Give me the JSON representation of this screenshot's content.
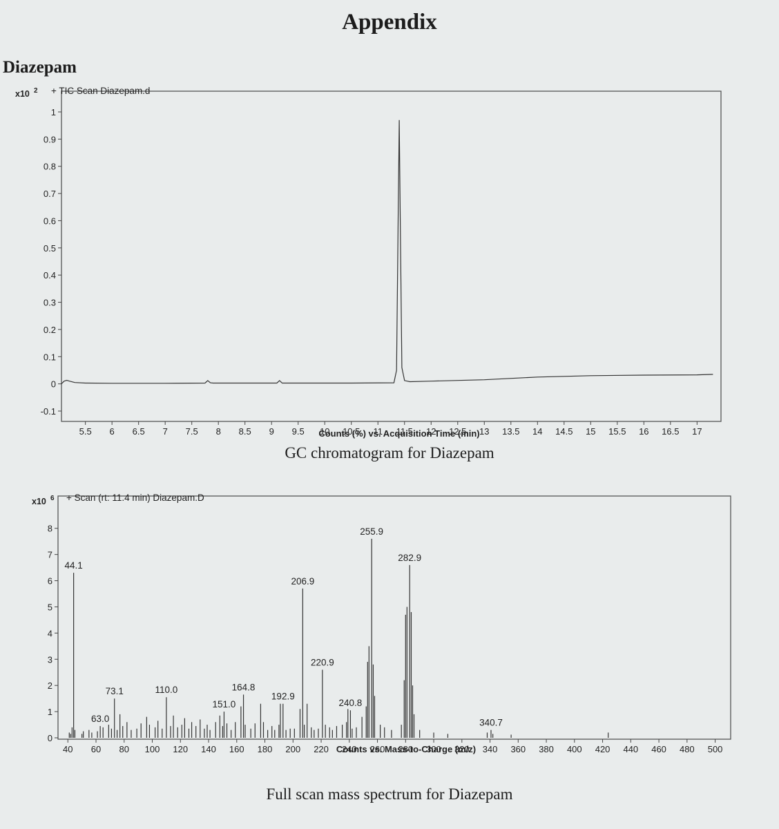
{
  "page": {
    "title": "Appendix",
    "compound": "Diazepam",
    "gc_caption": "GC chromatogram for Diazepam",
    "ms_caption": "Full scan mass spectrum for Diazepam"
  },
  "chart_data": [
    {
      "type": "line",
      "scan_label": "+ TIC Scan Diazepam.d",
      "y_multiplier": "x10",
      "y_exponent": "2",
      "xlabel": "Counts (%) vs. Acquisition Time (min)",
      "xlim": [
        5.05,
        17.45
      ],
      "ylim": [
        -0.1,
        1.0
      ],
      "x_ticks": [
        5.5,
        6,
        6.5,
        7,
        7.5,
        8,
        8.5,
        9,
        9.5,
        10,
        10.5,
        11,
        11.5,
        12,
        12.5,
        13,
        13.5,
        14,
        14.5,
        15,
        15.5,
        16,
        16.5,
        17
      ],
      "x_tick_labels": [
        "5.5",
        "6",
        "6.5",
        "7",
        "7.5",
        "8",
        "8.5",
        "9",
        "9.5",
        "10",
        "10.5",
        "11",
        "11.5",
        "12",
        "12.5",
        "13",
        "13.5",
        "14",
        "14.5",
        "15",
        "15.5",
        "16",
        "16.5",
        "17"
      ],
      "y_ticks": [
        1.0,
        0.9,
        0.8,
        0.7,
        0.6,
        0.5,
        0.4,
        0.3,
        0.2,
        0.1,
        0.0,
        -0.1
      ],
      "y_tick_labels": [
        "1",
        "0.9",
        "0.8",
        "0.7",
        "0.6",
        "0.5",
        "0.4",
        "0.3",
        "0.2",
        "0.1",
        "0",
        "-0.1"
      ],
      "series": [
        {
          "x": [
            5.05,
            5.1,
            5.15,
            5.2,
            5.3,
            5.5,
            6.0,
            7.0,
            7.75,
            7.8,
            7.85,
            7.9,
            8.5,
            9.1,
            9.15,
            9.2,
            9.5,
            10.5,
            11.3,
            11.35,
            11.38,
            11.4,
            11.42,
            11.45,
            11.5,
            11.6,
            12.0,
            13.0,
            14.0,
            15.0,
            16.0,
            17.0,
            17.3
          ],
          "y": [
            0.0,
            0.01,
            0.013,
            0.01,
            0.005,
            0.003,
            0.002,
            0.002,
            0.003,
            0.012,
            0.004,
            0.003,
            0.003,
            0.003,
            0.012,
            0.003,
            0.003,
            0.003,
            0.004,
            0.05,
            0.6,
            0.97,
            0.6,
            0.06,
            0.012,
            0.008,
            0.01,
            0.015,
            0.025,
            0.03,
            0.032,
            0.033,
            0.035
          ]
        }
      ]
    },
    {
      "type": "bar",
      "scan_label": "+ Scan (rt: 11.4 min) Diazepam.D",
      "y_multiplier": "x10",
      "y_exponent": "6",
      "xlabel": "Counts vs. Mass-to-Charge (m/z)",
      "xlim": [
        33,
        511
      ],
      "ylim": [
        0,
        8.6
      ],
      "x_ticks": [
        40,
        60,
        80,
        100,
        120,
        140,
        160,
        180,
        200,
        220,
        240,
        260,
        280,
        300,
        320,
        340,
        360,
        380,
        400,
        420,
        440,
        460,
        480,
        500
      ],
      "x_tick_labels": [
        "40",
        "60",
        "80",
        "100",
        "120",
        "140",
        "160",
        "180",
        "200",
        "220",
        "240",
        "260",
        "280",
        "300",
        "320",
        "340",
        "360",
        "380",
        "400",
        "420",
        "440",
        "460",
        "480",
        "500"
      ],
      "y_ticks": [
        8,
        7,
        6,
        5,
        4,
        3,
        2,
        1,
        0
      ],
      "y_tick_labels": [
        "8",
        "7",
        "6",
        "5",
        "4",
        "3",
        "2",
        "1",
        "0"
      ],
      "peaks": [
        {
          "mz": 44.1,
          "intensity": 6.3,
          "label": "44.1"
        },
        {
          "mz": 63.0,
          "intensity": 0.45,
          "label": "63.0"
        },
        {
          "mz": 73.1,
          "intensity": 1.5,
          "label": "73.1"
        },
        {
          "mz": 110.0,
          "intensity": 1.55,
          "label": "110.0"
        },
        {
          "mz": 151.0,
          "intensity": 1.0,
          "label": "151.0"
        },
        {
          "mz": 164.8,
          "intensity": 1.65,
          "label": "164.8"
        },
        {
          "mz": 192.9,
          "intensity": 1.3,
          "label": "192.9"
        },
        {
          "mz": 206.9,
          "intensity": 5.7,
          "label": "206.9"
        },
        {
          "mz": 220.9,
          "intensity": 2.6,
          "label": "220.9"
        },
        {
          "mz": 240.8,
          "intensity": 1.05,
          "label": "240.8"
        },
        {
          "mz": 255.9,
          "intensity": 7.6,
          "label": "255.9"
        },
        {
          "mz": 282.9,
          "intensity": 6.6,
          "label": "282.9"
        },
        {
          "mz": 340.7,
          "intensity": 0.3,
          "label": "340.7"
        }
      ],
      "minor_peaks": {
        "mz": [
          41,
          42,
          43,
          45,
          50,
          51,
          55,
          57,
          61,
          65,
          69,
          71,
          75,
          77,
          79,
          82,
          85,
          89,
          92,
          96,
          98,
          102,
          104,
          107,
          113,
          115,
          118,
          121,
          123,
          126,
          128,
          131,
          134,
          137,
          139,
          141,
          145,
          148,
          150,
          153,
          156,
          159,
          163,
          166,
          170,
          173,
          177,
          179,
          182,
          185,
          187,
          190,
          191,
          195,
          198,
          201,
          205,
          208,
          210,
          213,
          215,
          218,
          223,
          226,
          228,
          231,
          235,
          238,
          239,
          242,
          245,
          249,
          252,
          253,
          254,
          257,
          258,
          262,
          265,
          270,
          277,
          279,
          280,
          281,
          284,
          285,
          286,
          290,
          300,
          310,
          338,
          342,
          355,
          424
        ],
        "intensity": [
          0.2,
          0.15,
          0.4,
          0.3,
          0.15,
          0.25,
          0.3,
          0.2,
          0.25,
          0.4,
          0.5,
          0.35,
          0.3,
          0.9,
          0.45,
          0.6,
          0.3,
          0.35,
          0.55,
          0.8,
          0.5,
          0.4,
          0.65,
          0.35,
          0.45,
          0.85,
          0.4,
          0.5,
          0.75,
          0.35,
          0.6,
          0.45,
          0.7,
          0.35,
          0.5,
          0.3,
          0.6,
          0.85,
          0.45,
          0.55,
          0.3,
          0.6,
          1.2,
          0.5,
          0.35,
          0.55,
          1.3,
          0.6,
          0.3,
          0.45,
          0.3,
          0.5,
          1.3,
          0.3,
          0.35,
          0.35,
          1.1,
          0.5,
          1.3,
          0.4,
          0.3,
          0.35,
          0.5,
          0.4,
          0.3,
          0.45,
          0.5,
          0.6,
          1.1,
          0.35,
          0.4,
          0.8,
          1.2,
          2.9,
          3.5,
          2.8,
          1.6,
          0.5,
          0.4,
          0.3,
          0.5,
          2.2,
          4.7,
          5.0,
          4.8,
          2.0,
          0.9,
          0.3,
          0.2,
          0.15,
          0.2,
          0.15,
          0.12,
          0.2
        ]
      }
    }
  ]
}
